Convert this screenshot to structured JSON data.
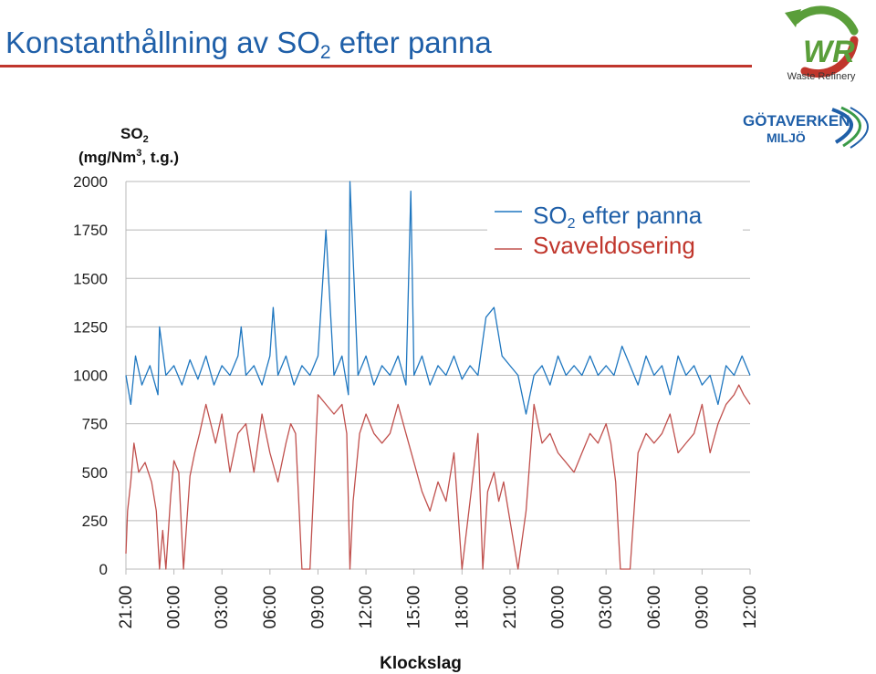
{
  "slide": {
    "title_main": "Konstanthållning av SO",
    "title_sub": "2",
    "title_rest": " efter panna"
  },
  "logos": {
    "wr_text": "WR",
    "wr_caption": "Waste Refinery",
    "gv_line1": "GÖTAVERKEN",
    "gv_line2": "MILJÖ"
  },
  "colors": {
    "so2": "#1f77c0",
    "sulfur": "#c0504d",
    "title": "#1f5fa8",
    "rule": "#c0362c",
    "wr_green": "#5a9e3a",
    "wr_red": "#c0362c",
    "gv_blue": "#1f5fa8",
    "gv_green": "#3a9a48"
  },
  "chart_data": {
    "type": "line",
    "ylabel_line1": "SO",
    "ylabel_sub": "2",
    "ylabel_line2": "(mg/Nm",
    "ylabel_sup": "3",
    "ylabel_line2_end": ", t.g.)",
    "xlabel": "Klockslag",
    "ylim": [
      0,
      2000
    ],
    "yticks": [
      0,
      250,
      500,
      750,
      1000,
      1250,
      1500,
      1750,
      2000
    ],
    "ytick_labels": [
      "0",
      "250",
      "500",
      "750",
      "1000",
      "1250",
      "1500",
      "1750",
      "2000"
    ],
    "xlim_hours": [
      0,
      39
    ],
    "xtick_labels": [
      "21:00",
      "00:00",
      "03:00",
      "06:00",
      "09:00",
      "12:00",
      "15:00",
      "18:00",
      "21:00",
      "00:00",
      "03:00",
      "06:00",
      "09:00",
      "12:00"
    ],
    "grid": "horizontal",
    "legend_position": "top-right",
    "series": [
      {
        "name": "SO",
        "name_sub": "2",
        "name_rest": " efter panna",
        "x": [
          0,
          0.3,
          0.6,
          1.0,
          1.5,
          2.0,
          2.1,
          2.5,
          3.0,
          3.5,
          4.0,
          4.5,
          5.0,
          5.5,
          6.0,
          6.5,
          7.0,
          7.2,
          7.5,
          8.0,
          8.5,
          9.0,
          9.2,
          9.5,
          10.0,
          10.5,
          11.0,
          11.5,
          12.0,
          12.5,
          13.0,
          13.5,
          13.9,
          14.0,
          14.5,
          15.0,
          15.5,
          16.0,
          16.5,
          17.0,
          17.5,
          17.8,
          18.0,
          18.5,
          19.0,
          19.5,
          20.0,
          20.5,
          21.0,
          21.5,
          22.0,
          22.5,
          23.0,
          23.5,
          24.0,
          24.5,
          25.0,
          25.5,
          26.0,
          26.5,
          27.0,
          27.5,
          28.0,
          28.5,
          29.0,
          29.5,
          30.0,
          30.5,
          31.0,
          31.5,
          32.0,
          32.5,
          33.0,
          33.5,
          34.0,
          34.5,
          35.0,
          35.5,
          36.0,
          36.5,
          37.0,
          37.5,
          38.0,
          38.5,
          39.0
        ],
        "y": [
          1000,
          850,
          1100,
          950,
          1050,
          900,
          1250,
          1000,
          1050,
          950,
          1080,
          980,
          1100,
          950,
          1050,
          1000,
          1100,
          1250,
          1000,
          1050,
          950,
          1100,
          1350,
          1000,
          1100,
          950,
          1050,
          1000,
          1100,
          1750,
          1000,
          1100,
          900,
          2000,
          1000,
          1100,
          950,
          1050,
          1000,
          1100,
          950,
          1950,
          1000,
          1100,
          950,
          1050,
          1000,
          1100,
          980,
          1050,
          1000,
          1300,
          1350,
          1100,
          1050,
          1000,
          800,
          1000,
          1050,
          950,
          1100,
          1000,
          1050,
          1000,
          1100,
          1000,
          1050,
          1000,
          1150,
          1050,
          950,
          1100,
          1000,
          1050,
          900,
          1100,
          1000,
          1050,
          950,
          1000,
          850,
          1050,
          1000,
          1100,
          1000
        ]
      },
      {
        "name": "Svaveldosering",
        "x": [
          0,
          0.1,
          0.3,
          0.5,
          0.8,
          1.2,
          1.6,
          1.9,
          2.1,
          2.3,
          2.5,
          2.8,
          3.0,
          3.3,
          3.6,
          4.0,
          4.3,
          4.6,
          5.0,
          5.3,
          5.6,
          6.0,
          6.5,
          7.0,
          7.5,
          8.0,
          8.5,
          9.0,
          9.5,
          10.0,
          10.3,
          10.6,
          11.0,
          11.5,
          12.0,
          12.5,
          13.0,
          13.5,
          13.8,
          14.0,
          14.2,
          14.6,
          15.0,
          15.5,
          16.0,
          16.5,
          17.0,
          17.5,
          18.0,
          18.5,
          19.0,
          19.5,
          20.0,
          20.5,
          21.0,
          21.5,
          22.0,
          22.3,
          22.6,
          23.0,
          23.3,
          23.6,
          24.0,
          24.5,
          25.0,
          25.5,
          26.0,
          26.5,
          27.0,
          27.5,
          28.0,
          28.5,
          29.0,
          29.5,
          30.0,
          30.3,
          30.6,
          30.9,
          31.2,
          31.5,
          32.0,
          32.5,
          33.0,
          33.5,
          34.0,
          34.5,
          35.0,
          35.5,
          36.0,
          36.5,
          37.0,
          37.5,
          38.0,
          38.3,
          38.6,
          39.0
        ],
        "y": [
          80,
          300,
          450,
          650,
          500,
          550,
          450,
          300,
          0,
          200,
          0,
          380,
          560,
          500,
          0,
          480,
          600,
          700,
          850,
          750,
          650,
          800,
          500,
          700,
          750,
          500,
          800,
          600,
          450,
          650,
          750,
          700,
          0,
          0,
          900,
          850,
          800,
          850,
          700,
          0,
          350,
          700,
          800,
          700,
          650,
          700,
          850,
          700,
          550,
          400,
          300,
          450,
          350,
          600,
          0,
          350,
          700,
          0,
          400,
          500,
          350,
          450,
          250,
          0,
          300,
          850,
          650,
          700,
          600,
          550,
          500,
          600,
          700,
          650,
          750,
          650,
          450,
          0,
          0,
          0,
          600,
          700,
          650,
          700,
          800,
          600,
          650,
          700,
          850,
          600,
          750,
          850,
          900,
          950,
          900,
          850
        ]
      }
    ]
  }
}
